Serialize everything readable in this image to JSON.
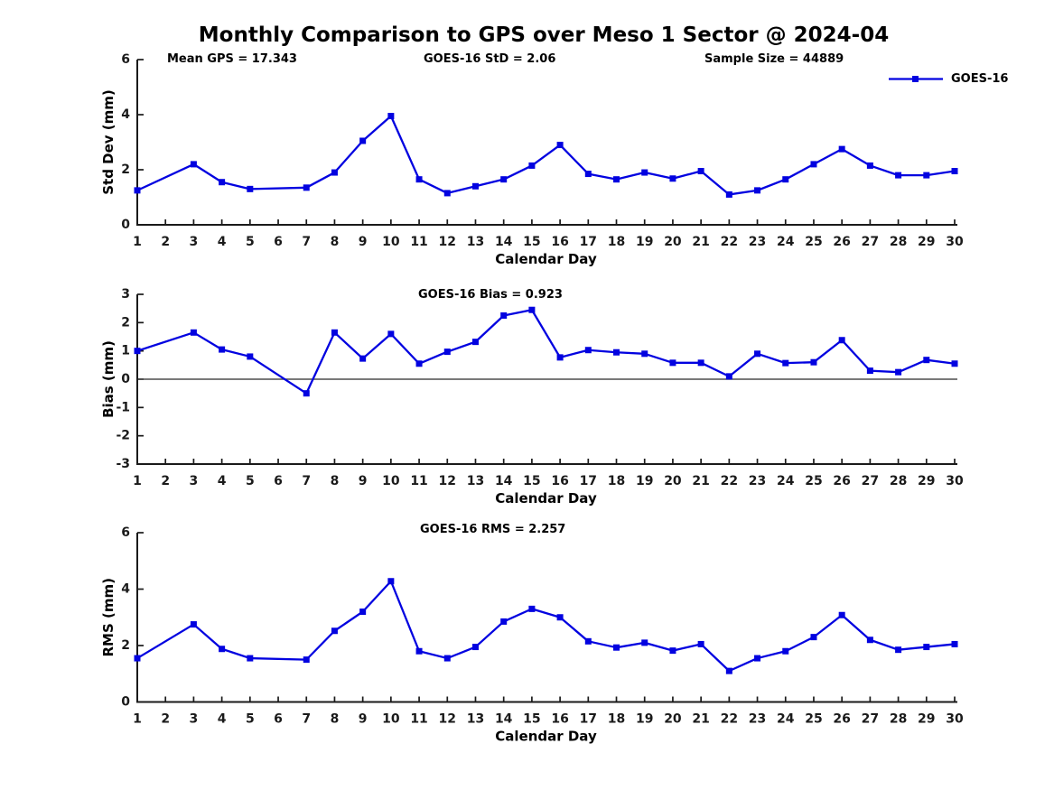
{
  "title": "Monthly Comparison to GPS over Meso 1 Sector @ 2024-04",
  "legend": {
    "label": "GOES-16"
  },
  "colors": {
    "line": "#0202e0",
    "zero_line": "#4d4d4d",
    "axis": "#1a1a1a",
    "text": "#000000",
    "background": "#ffffff"
  },
  "chart_data": [
    {
      "type": "line",
      "panel": "std-dev",
      "annotations": [
        "Mean GPS = 17.343",
        "GOES-16 StD = 2.06",
        "Sample Size = 44889"
      ],
      "xlabel": "Calendar Day",
      "ylabel": "Std Dev (mm)",
      "ylim": [
        0,
        6
      ],
      "yticks": [
        0,
        2,
        4,
        6
      ],
      "xticks": [
        1,
        2,
        3,
        4,
        5,
        6,
        7,
        8,
        9,
        10,
        11,
        12,
        13,
        14,
        15,
        16,
        17,
        18,
        19,
        20,
        21,
        22,
        23,
        24,
        25,
        26,
        27,
        28,
        29,
        30
      ],
      "x": [
        1,
        3,
        4,
        5,
        7,
        8,
        9,
        10,
        11,
        12,
        13,
        14,
        15,
        16,
        17,
        18,
        19,
        20,
        21,
        22,
        23,
        24,
        25,
        26,
        27,
        28,
        29,
        30
      ],
      "series": [
        {
          "name": "GOES-16",
          "values": [
            1.25,
            2.2,
            1.55,
            1.3,
            1.35,
            1.9,
            3.05,
            3.95,
            1.65,
            1.15,
            1.4,
            1.65,
            2.15,
            2.9,
            1.85,
            1.65,
            1.9,
            1.68,
            1.95,
            1.1,
            1.25,
            1.65,
            2.2,
            2.75,
            2.15,
            1.8,
            1.8,
            1.95
          ]
        }
      ],
      "zero_line": false,
      "legend_position": "upper right outside",
      "grid": false
    },
    {
      "type": "line",
      "panel": "bias",
      "annotations": [
        "GOES-16 Bias = 0.923"
      ],
      "xlabel": "Calendar Day",
      "ylabel": "Bias (mm)",
      "ylim": [
        -3,
        3
      ],
      "yticks": [
        3,
        2,
        1,
        0,
        -1,
        -2,
        -3
      ],
      "xticks": [
        1,
        2,
        3,
        4,
        5,
        6,
        7,
        8,
        9,
        10,
        11,
        12,
        13,
        14,
        15,
        16,
        17,
        18,
        19,
        20,
        21,
        22,
        23,
        24,
        25,
        26,
        27,
        28,
        29,
        30
      ],
      "x": [
        1,
        3,
        4,
        5,
        7,
        8,
        9,
        10,
        11,
        12,
        13,
        14,
        15,
        16,
        17,
        18,
        19,
        20,
        21,
        22,
        23,
        24,
        25,
        26,
        27,
        28,
        29,
        30
      ],
      "series": [
        {
          "name": "GOES-16",
          "values": [
            1.0,
            1.65,
            1.05,
            0.8,
            -0.5,
            1.65,
            0.73,
            1.6,
            0.55,
            0.97,
            1.32,
            2.25,
            2.45,
            0.77,
            1.03,
            0.95,
            0.9,
            0.58,
            0.58,
            0.1,
            0.9,
            0.57,
            0.6,
            1.38,
            0.3,
            0.25,
            0.68,
            0.55
          ]
        }
      ],
      "zero_line": true,
      "grid": false
    },
    {
      "type": "line",
      "panel": "rms",
      "annotations": [
        "GOES-16 RMS = 2.257"
      ],
      "xlabel": "Calendar Day",
      "ylabel": "RMS (mm)",
      "ylim": [
        0,
        6
      ],
      "yticks": [
        0,
        2,
        4,
        6
      ],
      "xticks": [
        1,
        2,
        3,
        4,
        5,
        6,
        7,
        8,
        9,
        10,
        11,
        12,
        13,
        14,
        15,
        16,
        17,
        18,
        19,
        20,
        21,
        22,
        23,
        24,
        25,
        26,
        27,
        28,
        29,
        30
      ],
      "x": [
        1,
        3,
        4,
        5,
        7,
        8,
        9,
        10,
        11,
        12,
        13,
        14,
        15,
        16,
        17,
        18,
        19,
        20,
        21,
        22,
        23,
        24,
        25,
        26,
        27,
        28,
        29,
        30
      ],
      "series": [
        {
          "name": "GOES-16",
          "values": [
            1.55,
            2.75,
            1.88,
            1.55,
            1.5,
            2.52,
            3.2,
            4.28,
            1.8,
            1.55,
            1.95,
            2.85,
            3.3,
            3.0,
            2.15,
            1.93,
            2.1,
            1.82,
            2.05,
            1.1,
            1.55,
            1.8,
            2.3,
            3.08,
            2.2,
            1.85,
            1.95,
            2.05
          ]
        }
      ],
      "zero_line": false,
      "grid": false
    }
  ]
}
